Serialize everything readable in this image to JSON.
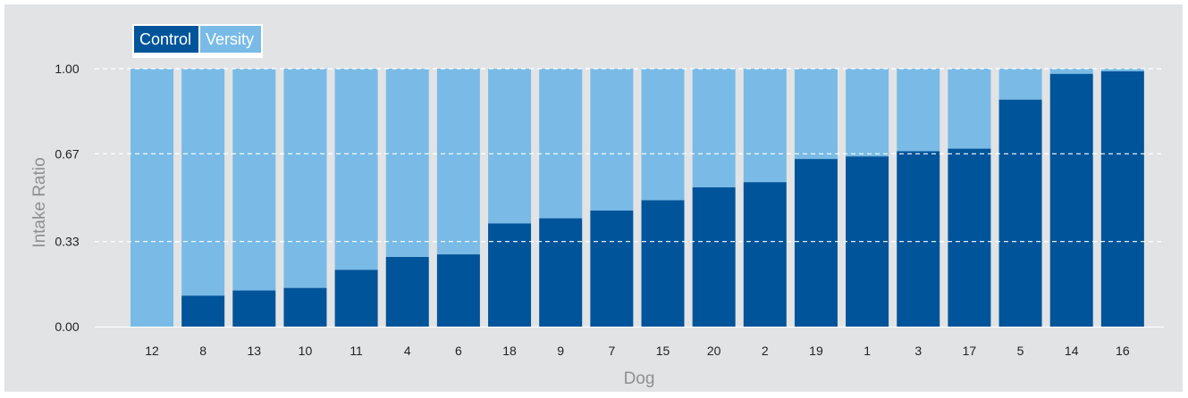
{
  "chart_data": {
    "type": "bar",
    "stacked": true,
    "xlabel": "Dog",
    "ylabel": "Intake Ratio",
    "ylim": [
      0,
      1
    ],
    "yticks": [
      "0.00",
      "0.33",
      "0.67",
      "1.00"
    ],
    "ytick_values": [
      0,
      0.33,
      0.67,
      1.0
    ],
    "grid": "horizontal dashed",
    "legend_position": "top-left",
    "categories": [
      "12",
      "8",
      "13",
      "10",
      "11",
      "4",
      "6",
      "18",
      "9",
      "7",
      "15",
      "20",
      "2",
      "19",
      "1",
      "3",
      "17",
      "5",
      "14",
      "16"
    ],
    "series": [
      {
        "name": "Control",
        "color": "#00549a",
        "values": [
          0.0,
          0.12,
          0.14,
          0.15,
          0.22,
          0.27,
          0.28,
          0.4,
          0.42,
          0.45,
          0.49,
          0.54,
          0.56,
          0.65,
          0.66,
          0.68,
          0.69,
          0.88,
          0.98,
          0.99
        ]
      },
      {
        "name": "Versity",
        "color": "#79bbe6",
        "values": [
          1.0,
          0.88,
          0.86,
          0.85,
          0.78,
          0.73,
          0.72,
          0.6,
          0.58,
          0.55,
          0.51,
          0.46,
          0.44,
          0.35,
          0.34,
          0.32,
          0.31,
          0.12,
          0.02,
          0.01
        ]
      }
    ]
  },
  "colors": {
    "background": "#e2e3e5",
    "grid": "#ffffff",
    "axis_text": "#222222",
    "axis_title": "#8e8f91"
  }
}
